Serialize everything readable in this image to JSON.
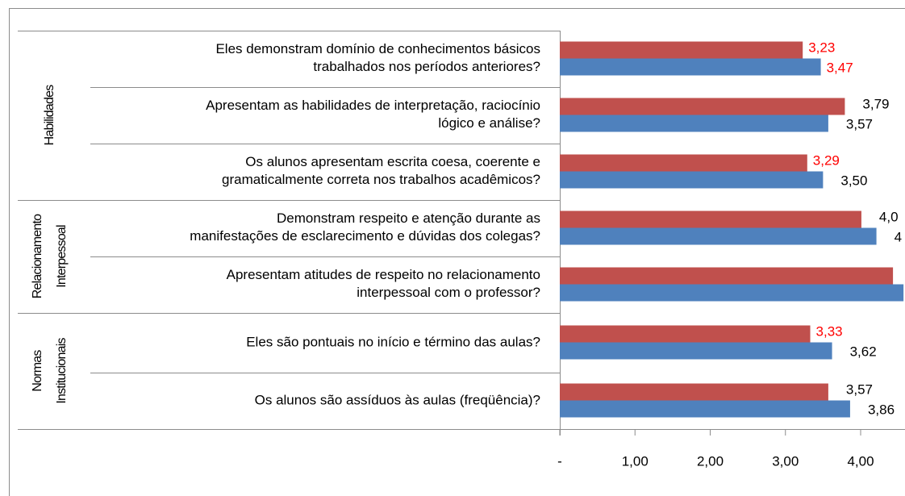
{
  "chart_data": {
    "type": "bar",
    "orientation": "horizontal",
    "groups": [
      {
        "label": "Habilidades",
        "size": 3
      },
      {
        "label": "Relacionamento\nInterpessoal",
        "size": 2
      },
      {
        "label": "Normas\nInstitucionais",
        "size": 2
      }
    ],
    "categories": [
      "Eles demonstram domínio de conhecimentos básicos\ntrabalhados nos períodos anteriores?",
      "Apresentam as habilidades de interpretação, raciocínio\nlógico e análise?",
      "Os alunos apresentam escrita coesa, coerente e\ngramaticalmente correta nos trabalhos acadêmicos?",
      "Demonstram respeito e atenção durante as\nmanifestações de esclarecimento e dúvidas dos colegas?",
      "Apresentam atitudes de respeito no relacionamento\ninterpessoal com o professor?",
      "Eles são pontuais no início e término das aulas?",
      "Os alunos são assíduos às aulas (freqüência)?"
    ],
    "series": [
      {
        "color": "#c0504d",
        "values": [
          3.23,
          3.79,
          3.29,
          4.01,
          4.43,
          3.33,
          3.57
        ],
        "value_labels": [
          "3,23",
          "3,79",
          "3,29",
          "4,0",
          null,
          "3,33",
          "3,57"
        ],
        "value_label_colors": [
          "#ff0000",
          "#000000",
          "#ff0000",
          "#000000",
          null,
          "#ff0000",
          "#000000"
        ]
      },
      {
        "color": "#4f81bd",
        "values": [
          3.47,
          3.57,
          3.5,
          4.21,
          4.57,
          3.62,
          3.86
        ],
        "value_labels": [
          "3,47",
          "3,57",
          "3,50",
          "4",
          null,
          "3,62",
          "3,86"
        ],
        "value_label_colors": [
          "#ff0000",
          "#000000",
          "#000000",
          "#000000",
          null,
          "#000000",
          "#000000"
        ]
      }
    ],
    "xlim": [
      0,
      4.5
    ],
    "xticks": [
      {
        "value": 0,
        "label": "-"
      },
      {
        "value": 1,
        "label": "1,00"
      },
      {
        "value": 2,
        "label": "2,00"
      },
      {
        "value": 3,
        "label": "3,00"
      },
      {
        "value": 4,
        "label": "4,00"
      }
    ]
  }
}
